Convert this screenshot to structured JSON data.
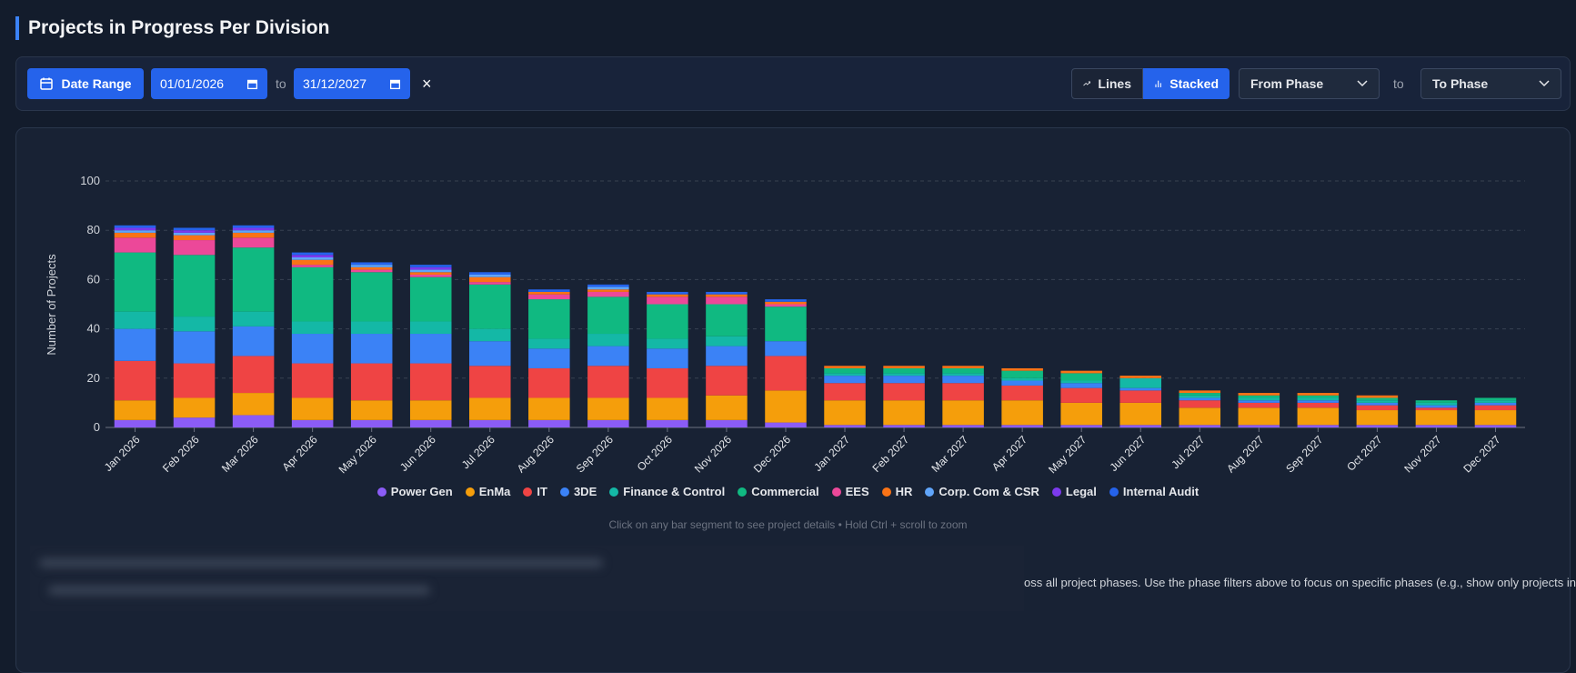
{
  "header": {
    "title": "Projects in Progress Per Division"
  },
  "filters": {
    "date_range_button": "Date Range",
    "start_date": "01/01/2026",
    "to_label": "to",
    "end_date": "31/12/2027",
    "clear": "×",
    "lines_button": "Lines",
    "stacked_button": "Stacked",
    "from_phase": "From Phase",
    "phase_to_label": "to",
    "to_phase": "To Phase"
  },
  "chart_data": {
    "type": "stacked_bar",
    "y_label": "Number of Projects",
    "categories": [
      "Jan 2026",
      "Feb 2026",
      "Mar 2026",
      "Apr 2026",
      "May 2026",
      "Jun 2026",
      "Jul 2026",
      "Aug 2026",
      "Sep 2026",
      "Oct 2026",
      "Nov 2026",
      "Dec 2026",
      "Jan 2027",
      "Feb 2027",
      "Mar 2027",
      "Apr 2027",
      "May 2027",
      "Jun 2027",
      "Jul 2027",
      "Aug 2027",
      "Sep 2027",
      "Oct 2027",
      "Nov 2027",
      "Dec 2027"
    ],
    "ylim": [
      0,
      100
    ],
    "yticks": [
      0,
      20,
      40,
      60,
      80,
      100
    ],
    "grid": true,
    "series": [
      {
        "name": "Power Gen",
        "color": "#8b5cf6",
        "values": [
          3,
          4,
          5,
          3,
          3,
          3,
          3,
          3,
          3,
          3,
          3,
          2,
          1,
          1,
          1,
          1,
          1,
          1,
          1,
          1,
          1,
          1,
          1,
          1
        ]
      },
      {
        "name": "EnMa",
        "color": "#f59e0b",
        "values": [
          8,
          8,
          9,
          9,
          8,
          8,
          9,
          9,
          9,
          9,
          10,
          13,
          10,
          10,
          10,
          10,
          9,
          9,
          7,
          7,
          7,
          6,
          6,
          6
        ]
      },
      {
        "name": "IT",
        "color": "#ef4444",
        "values": [
          16,
          14,
          15,
          14,
          15,
          15,
          13,
          12,
          13,
          12,
          12,
          14,
          7,
          7,
          7,
          6,
          6,
          5,
          3,
          2,
          2,
          2,
          1,
          2
        ]
      },
      {
        "name": "3DE",
        "color": "#3b82f6",
        "values": [
          13,
          13,
          12,
          12,
          12,
          12,
          10,
          8,
          8,
          8,
          8,
          6,
          3,
          3,
          3,
          2,
          2,
          1,
          1,
          1,
          1,
          1,
          1,
          1
        ]
      },
      {
        "name": "Finance & Control",
        "color": "#14b8a6",
        "values": [
          7,
          6,
          6,
          5,
          5,
          5,
          5,
          4,
          5,
          4,
          4,
          0,
          1,
          1,
          1,
          1,
          1,
          4,
          1,
          1,
          1,
          1,
          1,
          1
        ]
      },
      {
        "name": "Commercial",
        "color": "#10b981",
        "values": [
          24,
          25,
          26,
          22,
          20,
          18,
          18,
          16,
          15,
          14,
          13,
          14,
          2,
          2,
          2,
          3,
          3,
          0,
          1,
          1,
          1,
          1,
          1,
          1
        ]
      },
      {
        "name": "EES",
        "color": "#ec4899",
        "values": [
          6,
          6,
          4,
          1,
          1,
          1,
          1,
          2,
          2,
          3,
          3,
          1,
          0,
          0,
          0,
          0,
          0,
          0,
          0,
          0,
          0,
          0,
          0,
          0
        ]
      },
      {
        "name": "HR",
        "color": "#f97316",
        "values": [
          2,
          2,
          2,
          2,
          1,
          1,
          2,
          1,
          1,
          1,
          1,
          1,
          1,
          1,
          1,
          1,
          1,
          1,
          1,
          1,
          1,
          1,
          0,
          0
        ]
      },
      {
        "name": "Corp. Com & CSR",
        "color": "#60a5fa",
        "values": [
          1,
          1,
          1,
          1,
          1,
          1,
          1,
          0,
          1,
          0,
          0,
          0,
          0,
          0,
          0,
          0,
          0,
          0,
          0,
          0,
          0,
          0,
          0,
          0
        ]
      },
      {
        "name": "Legal",
        "color": "#7c3aed",
        "values": [
          1,
          1,
          1,
          1,
          0,
          1,
          0,
          0,
          0,
          0,
          0,
          0,
          0,
          0,
          0,
          0,
          0,
          0,
          0,
          0,
          0,
          0,
          0,
          0
        ]
      },
      {
        "name": "Internal Audit",
        "color": "#2563eb",
        "values": [
          1,
          1,
          1,
          1,
          1,
          1,
          1,
          1,
          1,
          1,
          1,
          1,
          0,
          0,
          0,
          0,
          0,
          0,
          0,
          0,
          0,
          0,
          0,
          0
        ]
      }
    ]
  },
  "hint": "Click on any bar segment to see project details • Hold Ctrl + scroll to zoom",
  "note": "oss all project phases. Use the phase filters above to focus on specific phases (e.g., show only projects in"
}
